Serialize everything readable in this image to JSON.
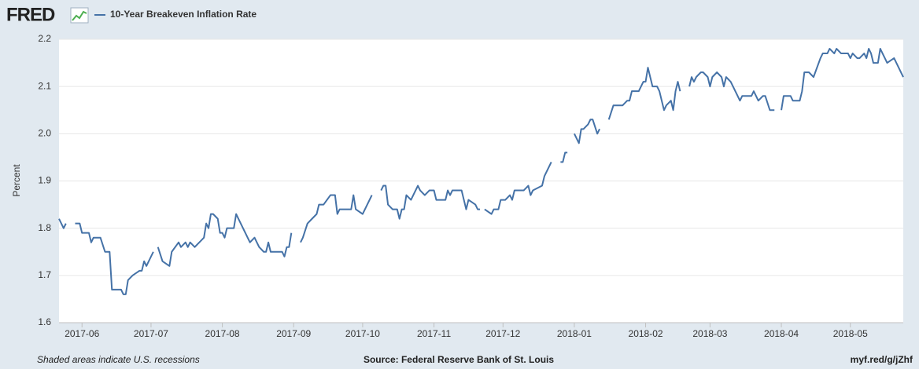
{
  "chart_data": {
    "type": "line",
    "logo": "FRED",
    "y_label": "Percent",
    "footnote": "Shaded areas indicate U.S. recessions",
    "source": "Source: Federal Reserve Bank of St. Louis",
    "short_url": "myf.red/g/jZhf",
    "grid": true,
    "xlim": [
      -10,
      357
    ],
    "xticks": [
      {
        "value": 0,
        "label": "2017-06"
      },
      {
        "value": 30,
        "label": "2017-07"
      },
      {
        "value": 61,
        "label": "2017-08"
      },
      {
        "value": 92,
        "label": "2017-09"
      },
      {
        "value": 122,
        "label": "2017-10"
      },
      {
        "value": 153,
        "label": "2017-11"
      },
      {
        "value": 183,
        "label": "2017-12"
      },
      {
        "value": 214,
        "label": "2018-01"
      },
      {
        "value": 245,
        "label": "2018-02"
      },
      {
        "value": 273,
        "label": "2018-03"
      },
      {
        "value": 304,
        "label": "2018-04"
      },
      {
        "value": 334,
        "label": "2018-05"
      }
    ],
    "ylim": [
      1.6,
      2.2
    ],
    "yticks": [
      1.6,
      1.7,
      1.8,
      1.9,
      {
        "value": 2,
        "label": "2.0"
      },
      2.1,
      2.2
    ],
    "x": [
      -10,
      -8,
      -7,
      -5,
      -3,
      -1,
      0,
      3,
      4,
      5,
      8,
      10,
      12,
      13,
      17,
      18,
      19,
      20,
      22,
      25,
      26,
      27,
      28,
      31,
      32,
      33,
      35,
      38,
      39,
      42,
      43,
      45,
      46,
      47,
      49,
      51,
      53,
      54,
      55,
      56,
      57,
      59,
      60,
      61,
      62,
      63,
      66,
      67,
      68,
      70,
      72,
      73,
      75,
      77,
      79,
      80,
      81,
      82,
      87,
      88,
      89,
      90,
      91,
      93,
      95,
      96,
      98,
      100,
      102,
      103,
      105,
      108,
      110,
      111,
      112,
      117,
      118,
      119,
      122,
      126,
      128,
      130,
      131,
      132,
      133,
      135,
      137,
      138,
      139,
      140,
      141,
      143,
      145,
      146,
      147,
      149,
      151,
      153,
      154,
      158,
      159,
      160,
      161,
      165,
      166,
      167,
      168,
      171,
      172,
      173,
      174,
      175,
      178,
      179,
      181,
      182,
      184,
      186,
      187,
      188,
      192,
      194,
      195,
      196,
      200,
      201,
      204,
      206,
      208,
      209,
      210,
      211,
      212,
      214,
      216,
      217,
      218,
      220,
      221,
      222,
      224,
      225,
      227,
      229,
      231,
      235,
      237,
      238,
      239,
      242,
      244,
      245,
      246,
      247,
      248,
      250,
      251,
      253,
      254,
      256,
      257,
      258,
      259,
      260,
      262,
      264,
      265,
      266,
      267,
      269,
      270,
      272,
      273,
      274,
      276,
      278,
      279,
      280,
      282,
      284,
      286,
      287,
      291,
      292,
      294,
      296,
      297,
      299,
      301,
      302,
      304,
      305,
      308,
      309,
      312,
      313,
      314,
      316,
      318,
      321,
      322,
      324,
      325,
      327,
      328,
      330,
      333,
      334,
      335,
      337,
      338,
      340,
      341,
      342,
      343,
      344,
      346,
      347,
      350,
      353,
      355,
      357
    ],
    "series": [
      {
        "name": "10-Year Breakeven Inflation Rate",
        "color": "#4572a7",
        "values": [
          1.82,
          1.8,
          1.81,
          null,
          1.81,
          1.81,
          1.79,
          1.79,
          1.77,
          1.78,
          1.78,
          1.75,
          1.75,
          1.67,
          1.67,
          1.66,
          1.66,
          1.69,
          1.7,
          1.71,
          1.71,
          1.73,
          1.72,
          1.75,
          null,
          1.76,
          1.73,
          1.72,
          1.75,
          1.77,
          1.76,
          1.77,
          1.76,
          1.77,
          1.76,
          1.77,
          1.78,
          1.81,
          1.8,
          1.83,
          1.83,
          1.82,
          1.79,
          1.79,
          1.78,
          1.8,
          1.8,
          1.83,
          1.82,
          1.8,
          1.78,
          1.77,
          1.78,
          1.76,
          1.75,
          1.75,
          1.77,
          1.75,
          1.75,
          1.74,
          1.76,
          1.76,
          1.79,
          null,
          1.77,
          1.78,
          1.81,
          1.82,
          1.83,
          1.85,
          1.85,
          1.87,
          1.87,
          1.83,
          1.84,
          1.84,
          1.87,
          1.84,
          1.83,
          1.87,
          null,
          1.88,
          1.89,
          1.89,
          1.85,
          1.84,
          1.84,
          1.82,
          1.84,
          1.84,
          1.87,
          1.86,
          1.88,
          1.89,
          1.88,
          1.87,
          1.88,
          1.88,
          1.86,
          1.86,
          1.88,
          1.87,
          1.88,
          1.88,
          1.86,
          1.84,
          1.86,
          1.85,
          1.84,
          1.84,
          null,
          1.84,
          1.83,
          1.84,
          1.84,
          1.86,
          1.86,
          1.87,
          1.86,
          1.88,
          1.88,
          1.89,
          1.87,
          1.88,
          1.89,
          1.91,
          1.94,
          null,
          1.94,
          1.94,
          1.96,
          1.96,
          null,
          2,
          1.98,
          2.01,
          2.01,
          2.02,
          2.03,
          2.03,
          2,
          2.01,
          null,
          2.03,
          2.06,
          2.06,
          2.07,
          2.07,
          2.09,
          2.09,
          2.11,
          2.11,
          2.14,
          2.12,
          2.1,
          2.1,
          2.09,
          2.05,
          2.06,
          2.07,
          2.05,
          2.09,
          2.11,
          2.09,
          null,
          2.1,
          2.12,
          2.11,
          2.12,
          2.13,
          2.13,
          2.12,
          2.1,
          2.12,
          2.13,
          2.12,
          2.1,
          2.12,
          2.11,
          2.09,
          2.07,
          2.08,
          2.08,
          2.09,
          2.07,
          2.08,
          2.08,
          2.05,
          2.05,
          null,
          2.05,
          2.08,
          2.08,
          2.07,
          2.07,
          2.09,
          2.13,
          2.13,
          2.12,
          2.16,
          2.17,
          2.17,
          2.18,
          2.17,
          2.18,
          2.17,
          2.17,
          2.16,
          2.17,
          2.16,
          2.16,
          2.17,
          2.16,
          2.18,
          2.17,
          2.15,
          2.15,
          2.18,
          2.15,
          2.16,
          2.14,
          2.12
        ]
      }
    ]
  }
}
